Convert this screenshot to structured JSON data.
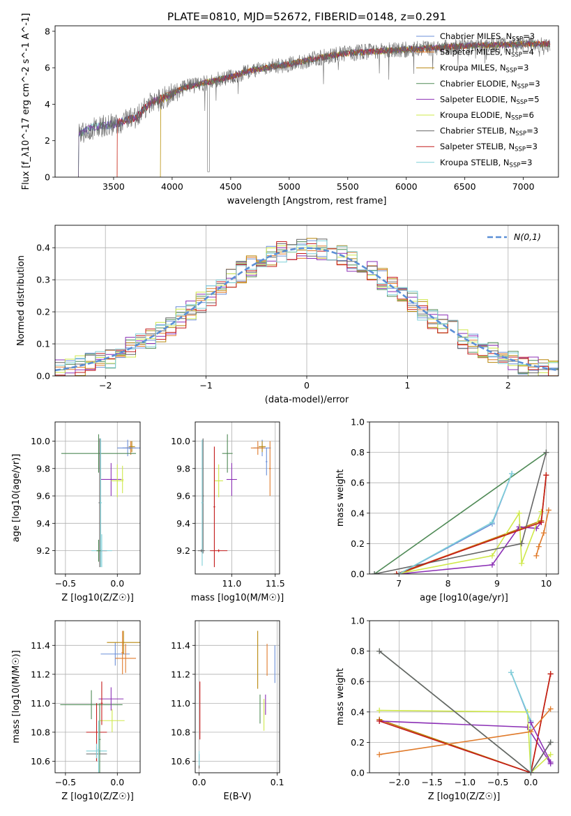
{
  "page_title": "PLATE=0810, MJD=52672, FIBERID=0148, z=0.291",
  "model_colors": [
    "#6b8fd8",
    "#e07a2a",
    "#b8860b",
    "#4f8a56",
    "#8b2fb5",
    "#cfe84a",
    "#666666",
    "#c41a1a",
    "#7fd0d8"
  ],
  "legend_labels": [
    "Chabrier MILES, N",
    "Salpeter MILES, N",
    "Kroupa MILES, N",
    "Chabrier ELODIE, N",
    "Salpeter ELODIE, N",
    "Kroupa ELODIE, N",
    "Chabrier STELIB, N",
    "Salpeter STELIB, N",
    "Kroupa STELIB, N"
  ],
  "legend_subscript": "SSP",
  "legend_counts": [
    "=3",
    "=4",
    "=3",
    "=3",
    "=5",
    "=6",
    "=3",
    "=3",
    "=3"
  ],
  "chart_data": [
    {
      "id": "spectrum",
      "type": "line",
      "title": "PLATE=0810, MJD=52672, FIBERID=0148, z=0.291",
      "xlabel": "wavelength [Angstrom, rest frame]",
      "ylabel": "Flux [f_λ10^-17 erg cm^-2 s^-1 A^-1]",
      "xlim": [
        3000,
        7300
      ],
      "ylim": [
        0,
        8.3
      ],
      "xticks": [
        3500,
        4000,
        4500,
        5000,
        5500,
        6000,
        6500,
        7000
      ],
      "yticks": [
        0,
        2,
        4,
        6,
        8
      ],
      "legend_placement": "top-right",
      "model_start_wavelengths": [
        3200,
        3530,
        3900,
        3200,
        3200,
        3900,
        3200,
        3530,
        3200
      ],
      "continuum": {
        "x": [
          3200,
          3300,
          3500,
          3700,
          3800,
          3950,
          4100,
          4300,
          4500,
          4700,
          5000,
          5300,
          5500,
          6000,
          6500,
          7000,
          7200
        ],
        "y": [
          2.3,
          2.7,
          2.9,
          3.3,
          4.0,
          4.4,
          4.9,
          5.2,
          5.5,
          5.9,
          6.2,
          6.6,
          6.8,
          7.0,
          7.2,
          7.3,
          7.3
        ]
      }
    },
    {
      "id": "residuals",
      "type": "histogram",
      "xlabel": "(data-model)/error",
      "ylabel": "Normed distribution",
      "xlim": [
        -2.5,
        2.5
      ],
      "ylim": [
        0,
        0.47
      ],
      "xticks": [
        -2,
        -1,
        0,
        1,
        2
      ],
      "yticks": [
        0.0,
        0.1,
        0.2,
        0.3,
        0.4
      ],
      "bin_width": 0.1,
      "legend_placement": "top-right",
      "legend_label": "N(0,1)",
      "reference": "gaussian(0,1)"
    },
    {
      "id": "age-vs-z",
      "type": "errorbar",
      "xlabel": "Z [log10(Z/Z☉)]",
      "ylabel": "age [log10(age/yr)]",
      "xlim": [
        -0.6,
        0.22
      ],
      "ylim": [
        9.03,
        10.14
      ],
      "xticks": [
        -0.5,
        0.0
      ],
      "yticks": [
        9.2,
        9.4,
        9.6,
        9.8,
        10.0
      ],
      "points": [
        {
          "model": 0,
          "x": 0.1,
          "y": 9.95,
          "xerr": 0.05,
          "yerr": 0.06
        },
        {
          "model": 1,
          "x": 0.13,
          "y": 9.95,
          "xerr": 0.05,
          "yerr": 0.05
        },
        {
          "model": 2,
          "x": 0.14,
          "y": 9.96,
          "xerr": 0.03,
          "yerr": 0.04
        },
        {
          "model": 3,
          "x": -0.18,
          "y": 9.91,
          "xerr": 0.36,
          "yerr": 0.14
        },
        {
          "model": 4,
          "x": -0.06,
          "y": 9.72,
          "xerr": 0.1,
          "yerr": 0.12
        },
        {
          "model": 5,
          "x": 0.0,
          "y": 9.71,
          "xerr": 0.06,
          "yerr": 0.12
        },
        {
          "model": 6,
          "x": -0.17,
          "y": 9.55,
          "xerr": 0.01,
          "yerr": 0.47
        },
        {
          "model": 7,
          "x": -0.15,
          "y": 9.2,
          "xerr": 0.05,
          "yerr": 0.01
        },
        {
          "model": 8,
          "x": -0.15,
          "y": 9.2,
          "xerr": 0.1,
          "yerr": 0.12
        },
        {
          "model": 0,
          "x": 0.12,
          "y": 9.95,
          "xerr": 0.12,
          "yerr": 0.01
        },
        {
          "model": 8,
          "x": -0.16,
          "y": 9.55,
          "xerr": 0.01,
          "yerr": 0.47
        },
        {
          "model": 3,
          "x": -0.18,
          "y": 9.2,
          "xerr": 0.02,
          "yerr": 0.08
        },
        {
          "model": 5,
          "x": 0.05,
          "y": 9.72,
          "xerr": 0.01,
          "yerr": 0.1
        }
      ]
    },
    {
      "id": "age-vs-mass",
      "type": "errorbar",
      "xlabel": "mass [log10(M/M☉)]",
      "ylabel": "",
      "xlim": [
        10.58,
        11.55
      ],
      "ylim": [
        9.03,
        10.14
      ],
      "xticks": [
        11.0,
        11.5
      ],
      "yticks": [
        9.2,
        9.4,
        9.6,
        9.8,
        10.0
      ],
      "points": [
        {
          "model": 0,
          "x": 11.35,
          "y": 9.95,
          "xerr": 0.1,
          "yerr": 0.06
        },
        {
          "model": 1,
          "x": 11.3,
          "y": 9.95,
          "xerr": 0.08,
          "yerr": 0.05
        },
        {
          "model": 2,
          "x": 11.35,
          "y": 9.96,
          "xerr": 0.04,
          "yerr": 0.04
        },
        {
          "model": 3,
          "x": 10.95,
          "y": 9.91,
          "xerr": 0.06,
          "yerr": 0.14
        },
        {
          "model": 4,
          "x": 11.0,
          "y": 9.72,
          "xerr": 0.06,
          "yerr": 0.12
        },
        {
          "model": 5,
          "x": 10.85,
          "y": 9.71,
          "xerr": 0.05,
          "yerr": 0.12
        },
        {
          "model": 6,
          "x": 10.67,
          "y": 9.6,
          "xerr": 0.01,
          "yerr": 0.42
        },
        {
          "model": 7,
          "x": 10.8,
          "y": 9.52,
          "xerr": 0.01,
          "yerr": 0.44
        },
        {
          "model": 8,
          "x": 10.66,
          "y": 9.55,
          "xerr": 0.01,
          "yerr": 0.46
        },
        {
          "model": 1,
          "x": 11.44,
          "y": 9.8,
          "xerr": 0.01,
          "yerr": 0.2
        },
        {
          "model": 7,
          "x": 10.85,
          "y": 9.2,
          "xerr": 0.1,
          "yerr": 0.01
        },
        {
          "model": 6,
          "x": 10.65,
          "y": 9.2,
          "xerr": 0.04,
          "yerr": 0.01
        },
        {
          "model": 0,
          "x": 11.4,
          "y": 9.85,
          "xerr": 0.01,
          "yerr": 0.1
        }
      ]
    },
    {
      "id": "weight-vs-age",
      "type": "line",
      "xlabel": "age [log10(age/yr)]",
      "ylabel": "mass weight",
      "xlim": [
        6.4,
        10.25
      ],
      "ylim": [
        0,
        1.0
      ],
      "xticks": [
        7,
        8,
        9,
        10
      ],
      "yticks": [
        0.0,
        0.2,
        0.4,
        0.6,
        0.8,
        1.0
      ],
      "series": [
        {
          "model": 0,
          "x": [
            7.0,
            8.9,
            9.3
          ],
          "y": [
            0.0,
            0.33,
            0.66
          ]
        },
        {
          "model": 1,
          "x": [
            6.95,
            9.9,
            10.0
          ],
          "y": [
            0.0,
            0.35,
            0.65
          ]
        },
        {
          "model": 2,
          "x": [
            7.0,
            9.9,
            10.0
          ],
          "y": [
            0.0,
            0.35,
            0.65
          ]
        },
        {
          "model": 3,
          "x": [
            6.5,
            10.0
          ],
          "y": [
            0.0,
            0.8
          ]
        },
        {
          "model": 4,
          "x": [
            7.0,
            8.9,
            9.45,
            9.8,
            9.9
          ],
          "y": [
            0.0,
            0.06,
            0.31,
            0.3,
            0.34
          ]
        },
        {
          "model": 5,
          "x": [
            6.95,
            8.9,
            9.45,
            9.5,
            9.9
          ],
          "y": [
            0.0,
            0.12,
            0.4,
            0.07,
            0.41
          ]
        },
        {
          "model": 6,
          "x": [
            6.5,
            9.5,
            10.0
          ],
          "y": [
            0.0,
            0.2,
            0.8
          ]
        },
        {
          "model": 7,
          "x": [
            6.95,
            9.9,
            10.0
          ],
          "y": [
            0.0,
            0.34,
            0.65
          ]
        },
        {
          "model": 8,
          "x": [
            7.0,
            8.9,
            9.3
          ],
          "y": [
            0.0,
            0.34,
            0.66
          ]
        },
        {
          "model": 1,
          "x": [
            9.8,
            9.85,
            9.95,
            10.05
          ],
          "y": [
            0.12,
            0.18,
            0.27,
            0.42
          ]
        }
      ]
    },
    {
      "id": "mass-vs-z",
      "type": "errorbar",
      "xlabel": "Z [log10(Z/Z☉)]",
      "ylabel": "mass [log10(M/M☉)]",
      "xlim": [
        -0.6,
        0.22
      ],
      "ylim": [
        10.52,
        11.57
      ],
      "xticks": [
        -0.5,
        0.0
      ],
      "yticks": [
        10.6,
        10.8,
        11.0,
        11.2,
        11.4
      ],
      "points": [
        {
          "model": 0,
          "x": -0.02,
          "y": 11.34,
          "xerr": 0.14,
          "yerr": 0.08
        },
        {
          "model": 1,
          "x": 0.08,
          "y": 11.31,
          "xerr": 0.1,
          "yerr": 0.1
        },
        {
          "model": 2,
          "x": 0.06,
          "y": 11.42,
          "xerr": 0.16,
          "yerr": 0.08
        },
        {
          "model": 3,
          "x": -0.25,
          "y": 10.99,
          "xerr": 0.3,
          "yerr": 0.1
        },
        {
          "model": 4,
          "x": -0.06,
          "y": 11.03,
          "xerr": 0.12,
          "yerr": 0.08
        },
        {
          "model": 5,
          "x": -0.05,
          "y": 10.88,
          "xerr": 0.12,
          "yerr": 0.08
        },
        {
          "model": 6,
          "x": -0.2,
          "y": 10.65,
          "xerr": 0.1,
          "yerr": 0.05
        },
        {
          "model": 7,
          "x": -0.2,
          "y": 10.8,
          "xerr": 0.1,
          "yerr": 0.2
        },
        {
          "model": 8,
          "x": -0.2,
          "y": 10.67,
          "xerr": 0.1,
          "yerr": 0.05
        },
        {
          "model": 1,
          "x": 0.05,
          "y": 11.35,
          "xerr": 0.01,
          "yerr": 0.15
        },
        {
          "model": 3,
          "x": -0.17,
          "y": 10.75,
          "xerr": 0.01,
          "yerr": 0.25
        },
        {
          "model": 8,
          "x": -0.18,
          "y": 10.68,
          "xerr": 0.01,
          "yerr": 0.2
        },
        {
          "model": 7,
          "x": -0.15,
          "y": 11.0,
          "xerr": 0.01,
          "yerr": 0.15
        }
      ]
    },
    {
      "id": "mass-vs-ebv",
      "type": "errorbar",
      "xlabel": "E(B-V)",
      "ylabel": "",
      "xlim": [
        -0.005,
        0.103
      ],
      "ylim": [
        10.52,
        11.57
      ],
      "xticks": [
        0.0,
        0.1
      ],
      "yticks": [
        10.6,
        10.8,
        11.0,
        11.2,
        11.4
      ],
      "points": [
        {
          "model": 0,
          "x": 0.097,
          "y": 11.27,
          "xerr": 0.0,
          "yerr": 0.13
        },
        {
          "model": 1,
          "x": 0.087,
          "y": 11.3,
          "xerr": 0.0,
          "yerr": 0.11
        },
        {
          "model": 2,
          "x": 0.075,
          "y": 11.3,
          "xerr": 0.0,
          "yerr": 0.2
        },
        {
          "model": 3,
          "x": 0.078,
          "y": 10.96,
          "xerr": 0.0,
          "yerr": 0.1
        },
        {
          "model": 4,
          "x": 0.085,
          "y": 10.99,
          "xerr": 0.0,
          "yerr": 0.07
        },
        {
          "model": 5,
          "x": 0.083,
          "y": 10.92,
          "xerr": 0.0,
          "yerr": 0.11
        },
        {
          "model": 6,
          "x": 0.0,
          "y": 10.6,
          "xerr": 0.0,
          "yerr": 0.05
        },
        {
          "model": 7,
          "x": 0.001,
          "y": 10.95,
          "xerr": 0.0,
          "yerr": 0.2
        },
        {
          "model": 8,
          "x": 0.0,
          "y": 10.62,
          "xerr": 0.0,
          "yerr": 0.05
        }
      ]
    },
    {
      "id": "weight-vs-z",
      "type": "line",
      "xlabel": "Z [log10(Z/Z☉)]",
      "ylabel": "mass weight",
      "xlim": [
        -2.45,
        0.42
      ],
      "ylim": [
        0,
        1.0
      ],
      "xticks": [
        -2.0,
        -1.5,
        -1.0,
        -0.5,
        0.0
      ],
      "yticks": [
        0.0,
        0.2,
        0.4,
        0.6,
        0.8,
        1.0
      ],
      "series": [
        {
          "model": 0,
          "x": [
            -0.3,
            0.0,
            0.0
          ],
          "y": [
            0.66,
            0.33,
            0.0
          ]
        },
        {
          "model": 1,
          "x": [
            -2.3,
            0.0,
            0.3
          ],
          "y": [
            0.35,
            0.0,
            0.65
          ]
        },
        {
          "model": 2,
          "x": [
            -2.3,
            0.0,
            0.3
          ],
          "y": [
            0.35,
            0.0,
            0.65
          ]
        },
        {
          "model": 3,
          "x": [
            -2.3,
            0.0,
            0.3
          ],
          "y": [
            0.8,
            0.0,
            0.2
          ]
        },
        {
          "model": 4,
          "x": [
            -2.3,
            -0.05,
            0.3
          ],
          "y": [
            0.34,
            0.3,
            0.06
          ]
        },
        {
          "model": 5,
          "x": [
            -2.3,
            -0.05,
            0.0,
            0.3
          ],
          "y": [
            0.41,
            0.4,
            0.0,
            0.12
          ]
        },
        {
          "model": 6,
          "x": [
            -2.3,
            0.0,
            0.3
          ],
          "y": [
            0.8,
            0.0,
            0.2
          ]
        },
        {
          "model": 7,
          "x": [
            -2.3,
            0.0,
            0.3
          ],
          "y": [
            0.34,
            0.0,
            0.65
          ]
        },
        {
          "model": 8,
          "x": [
            -0.3,
            0.0,
            0.0
          ],
          "y": [
            0.66,
            0.34,
            0.0
          ]
        },
        {
          "model": 1,
          "x": [
            -2.3,
            0.0,
            0.3
          ],
          "y": [
            0.12,
            0.27,
            0.42
          ]
        },
        {
          "model": 4,
          "x": [
            0.0,
            0.3
          ],
          "y": [
            0.33,
            0.07
          ]
        }
      ]
    }
  ]
}
